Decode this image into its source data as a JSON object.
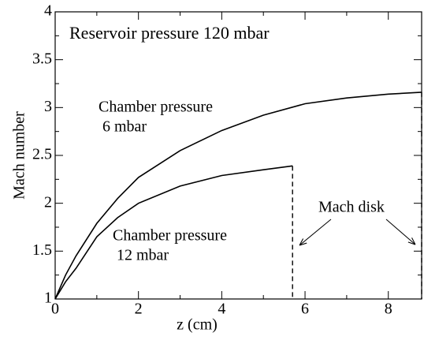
{
  "chart_data": {
    "type": "line",
    "xlabel": "z (cm)",
    "ylabel": "Mach number",
    "annotations": [
      "Reservoir pressure 120 mbar",
      "Mach disk"
    ],
    "xlim": [
      0,
      8.8
    ],
    "ylim": [
      1,
      4
    ],
    "xticks": [
      0,
      2,
      4,
      6,
      8
    ],
    "yticks": [
      1,
      1.5,
      2,
      2.5,
      3,
      3.5,
      4
    ],
    "xminor": [
      1,
      3,
      5,
      7
    ],
    "yminor": [
      1.25,
      1.75,
      2.25,
      2.75,
      3.25,
      3.75
    ],
    "drop_line": "dashed",
    "series": [
      {
        "label_lines": [
          "Chamber pressure",
          "6  mbar"
        ],
        "color": "#000000",
        "x": [
          0,
          0.25,
          0.5,
          1,
          1.5,
          2,
          3,
          4,
          5,
          6,
          7,
          8,
          8.8
        ],
        "values": [
          1,
          1.25,
          1.45,
          1.79,
          2.05,
          2.27,
          2.55,
          2.76,
          2.92,
          3.04,
          3.1,
          3.14,
          3.16
        ]
      },
      {
        "label_lines": [
          "Chamber pressure",
          "12  mbar"
        ],
        "color": "#000000",
        "x": [
          0,
          0.25,
          0.5,
          1,
          1.5,
          2,
          3,
          4,
          5,
          5.7
        ],
        "values": [
          1,
          1.18,
          1.32,
          1.65,
          1.85,
          2.0,
          2.18,
          2.29,
          2.35,
          2.39
        ]
      }
    ]
  }
}
